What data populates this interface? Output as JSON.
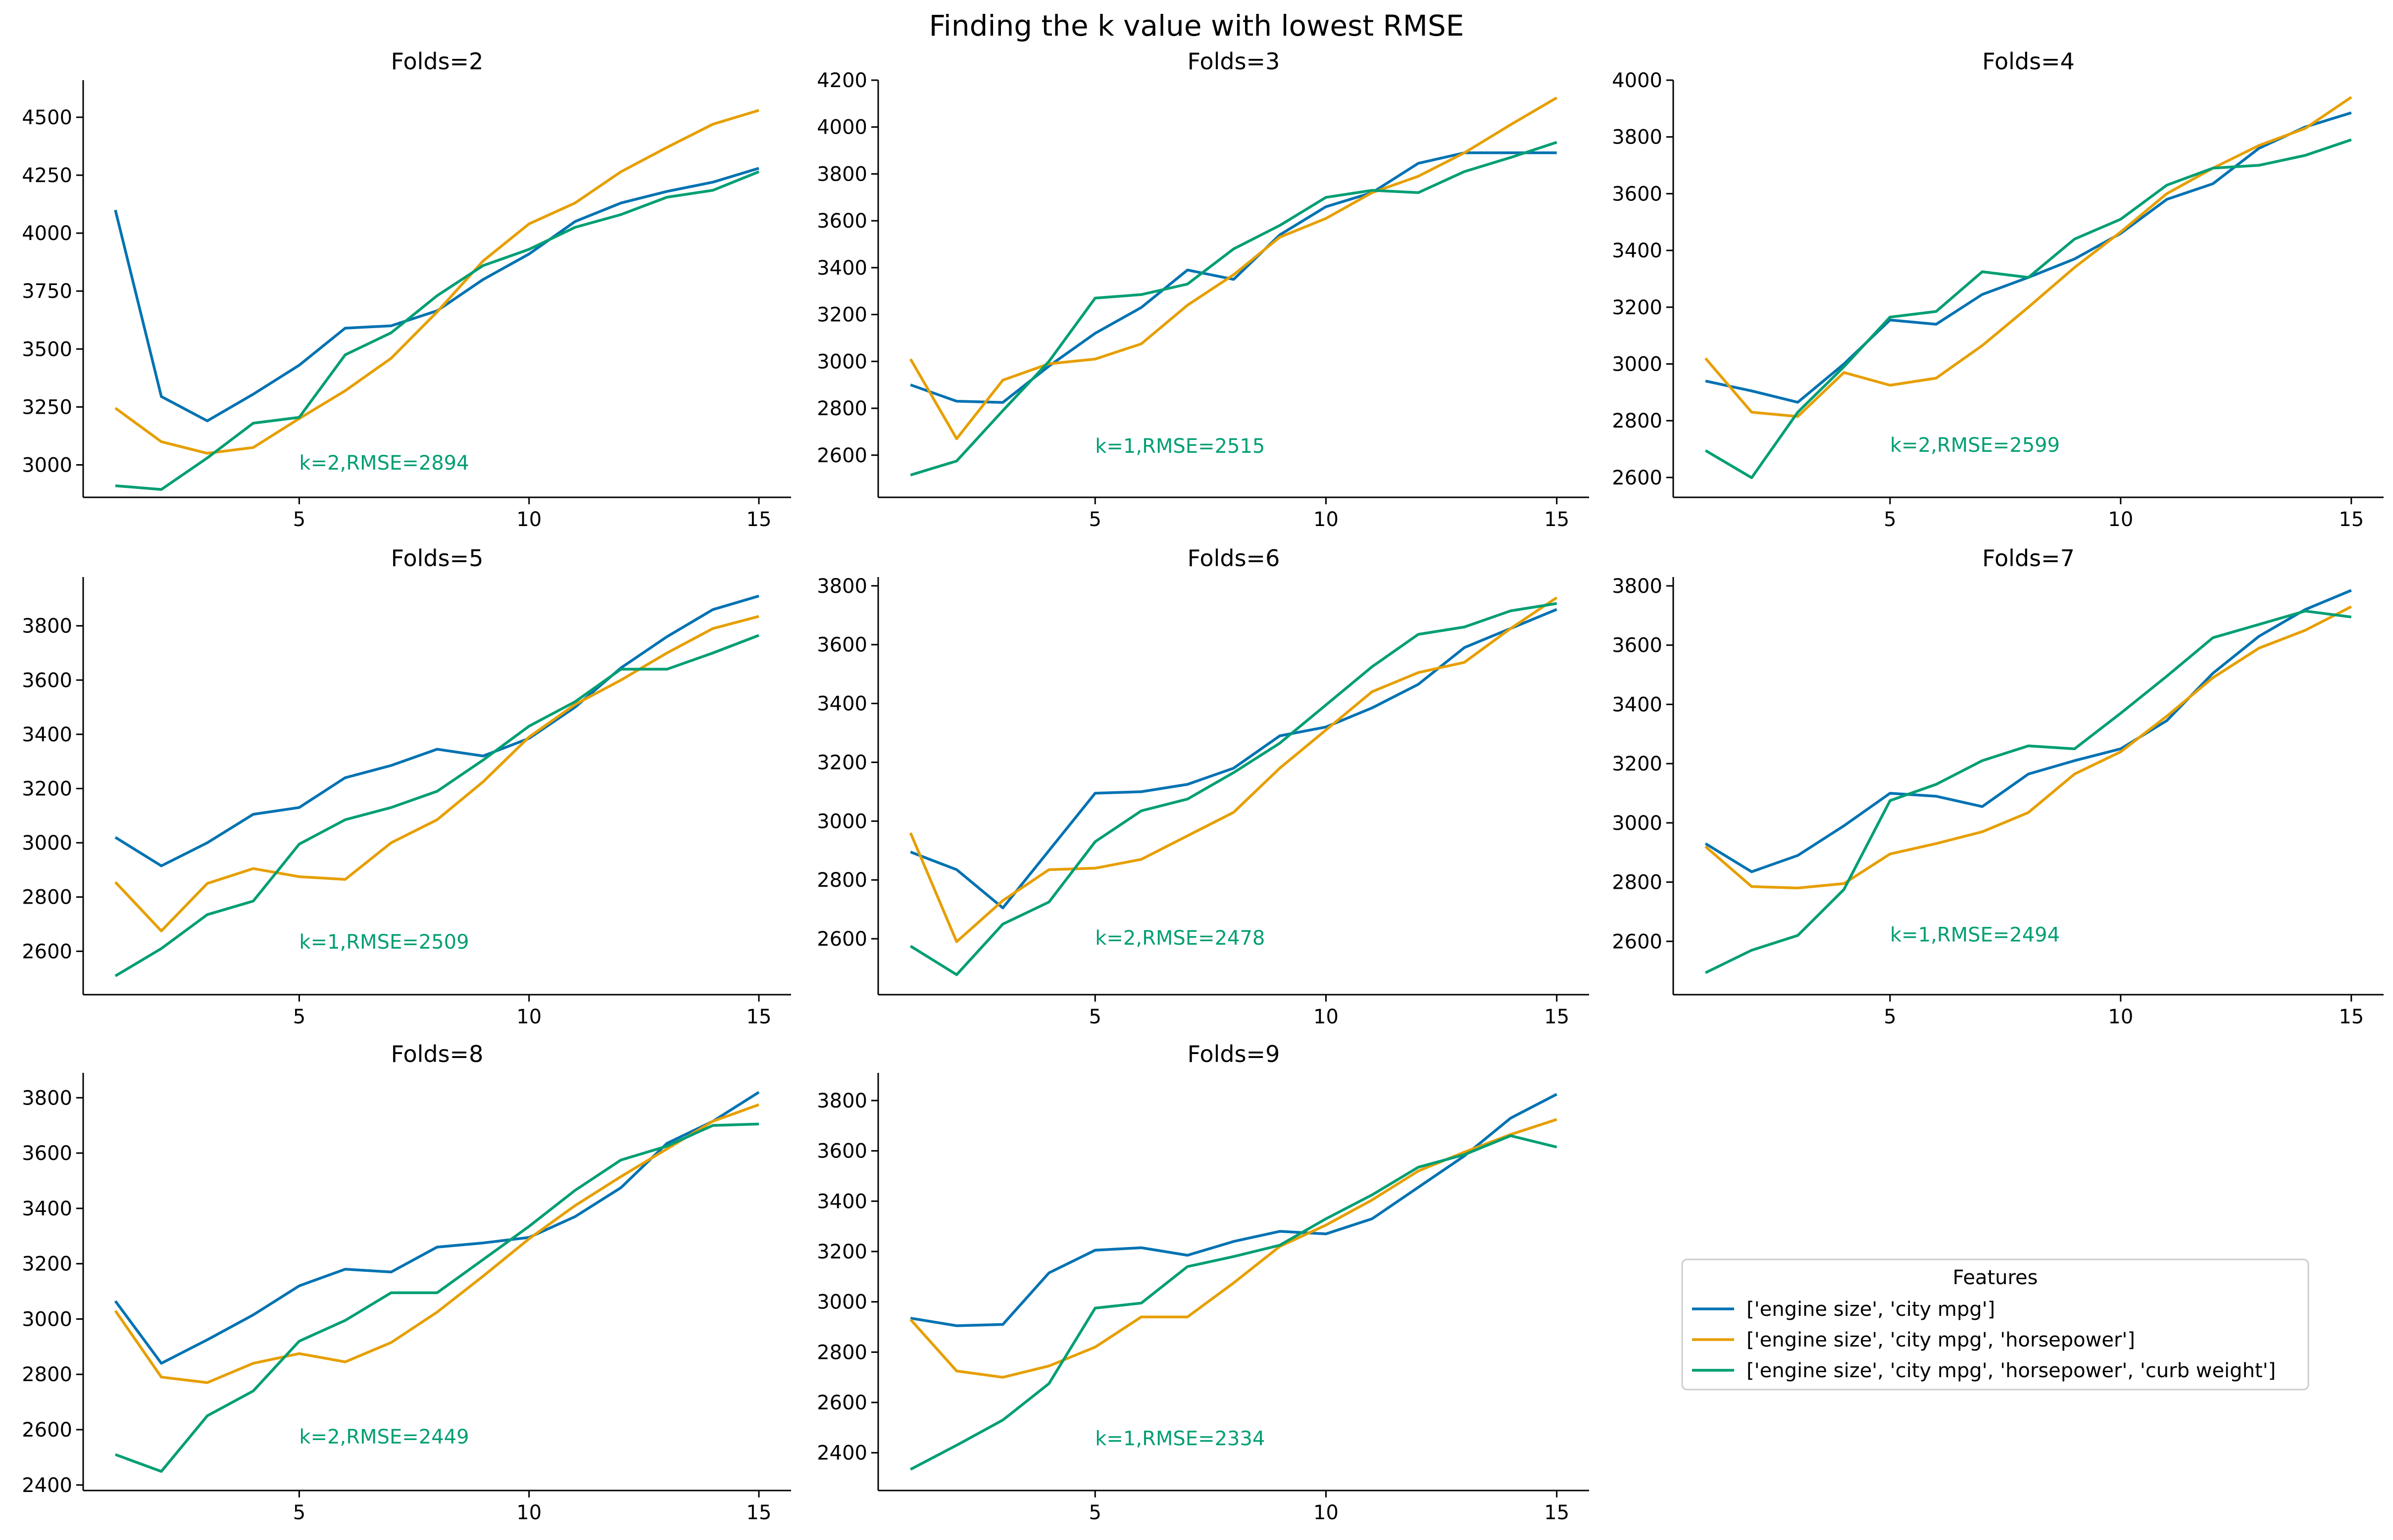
{
  "figure": {
    "title": "Finding the k value with lowest RMSE",
    "colors": {
      "series": [
        "#0072b2",
        "#e69f00",
        "#009e73"
      ],
      "annotation": "#009e73",
      "axis": "#000000"
    }
  },
  "legend": {
    "title": "Features",
    "placement": "lower-right, in empty 9th grid cell"
  },
  "chart_data": [
    {
      "type": "line",
      "title": "Folds=2",
      "x": [
        1,
        2,
        3,
        4,
        5,
        6,
        7,
        8,
        9,
        10,
        11,
        12,
        13,
        14,
        15
      ],
      "xticks": [
        5,
        10,
        15
      ],
      "xlim": [
        0.3,
        15.7
      ],
      "ylim": [
        2860,
        4660
      ],
      "yticks": [
        3000,
        3250,
        3500,
        3750,
        4000,
        4250,
        4500
      ],
      "grid": false,
      "annotation": {
        "text": "k=2,RMSE=2894",
        "x": 5,
        "y": 2980
      },
      "series": [
        {
          "name": "['engine size', 'city mpg']",
          "values": [
            4100,
            3295,
            3190,
            3305,
            3430,
            3590,
            3600,
            3665,
            3800,
            3910,
            4050,
            4130,
            4180,
            4220,
            4280
          ]
        },
        {
          "name": "['engine size', 'city mpg', 'horsepower']",
          "values": [
            3245,
            3100,
            3050,
            3075,
            3200,
            3320,
            3460,
            3660,
            3880,
            4040,
            4130,
            4265,
            4370,
            4470,
            4530
          ]
        },
        {
          "name": "['engine size', 'city mpg', 'horsepower', 'curb weight']",
          "values": [
            2910,
            2894,
            3030,
            3180,
            3205,
            3475,
            3570,
            3730,
            3860,
            3930,
            4025,
            4080,
            4155,
            4185,
            4265
          ]
        }
      ]
    },
    {
      "type": "line",
      "title": "Folds=3",
      "x": [
        1,
        2,
        3,
        4,
        5,
        6,
        7,
        8,
        9,
        10,
        11,
        12,
        13,
        14,
        15
      ],
      "xticks": [
        5,
        10,
        15
      ],
      "xlim": [
        0.3,
        15.7
      ],
      "ylim": [
        2420,
        4200
      ],
      "yticks": [
        2600,
        2800,
        3000,
        3200,
        3400,
        3600,
        3800,
        4000,
        4200
      ],
      "grid": false,
      "annotation": {
        "text": "k=1,RMSE=2515",
        "x": 5,
        "y": 2610
      },
      "series": [
        {
          "name": "['engine size', 'city mpg']",
          "values": [
            2900,
            2830,
            2825,
            2980,
            3120,
            3230,
            3390,
            3350,
            3540,
            3660,
            3720,
            3845,
            3890,
            3890,
            3890
          ]
        },
        {
          "name": "['engine size', 'city mpg', 'horsepower']",
          "values": [
            3010,
            2670,
            2920,
            2990,
            3010,
            3075,
            3240,
            3370,
            3530,
            3610,
            3720,
            3790,
            3890,
            4010,
            4125
          ]
        },
        {
          "name": "['engine size', 'city mpg', 'horsepower', 'curb weight']",
          "values": [
            2515,
            2575,
            2790,
            3000,
            3270,
            3285,
            3330,
            3480,
            3580,
            3700,
            3730,
            3720,
            3810,
            3870,
            3935
          ]
        }
      ]
    },
    {
      "type": "line",
      "title": "Folds=4",
      "x": [
        1,
        2,
        3,
        4,
        5,
        6,
        7,
        8,
        9,
        10,
        11,
        12,
        13,
        14,
        15
      ],
      "xticks": [
        5,
        10,
        15
      ],
      "xlim": [
        0.3,
        15.7
      ],
      "ylim": [
        2530,
        4000
      ],
      "yticks": [
        2600,
        2800,
        3000,
        3200,
        3400,
        3600,
        3800,
        4000
      ],
      "grid": false,
      "annotation": {
        "text": "k=2,RMSE=2599",
        "x": 5,
        "y": 2690
      },
      "series": [
        {
          "name": "['engine size', 'city mpg']",
          "values": [
            2940,
            2905,
            2865,
            3000,
            3155,
            3140,
            3245,
            3305,
            3370,
            3460,
            3580,
            3635,
            3760,
            3835,
            3885
          ]
        },
        {
          "name": "['engine size', 'city mpg', 'horsepower']",
          "values": [
            3020,
            2830,
            2815,
            2970,
            2925,
            2950,
            3065,
            3200,
            3340,
            3465,
            3600,
            3690,
            3770,
            3830,
            3940
          ]
        },
        {
          "name": "['engine size', 'city mpg', 'horsepower', 'curb weight']",
          "values": [
            2695,
            2599,
            2830,
            2990,
            3165,
            3185,
            3325,
            3305,
            3440,
            3510,
            3630,
            3690,
            3700,
            3735,
            3790
          ]
        }
      ]
    },
    {
      "type": "line",
      "title": "Folds=5",
      "x": [
        1,
        2,
        3,
        4,
        5,
        6,
        7,
        8,
        9,
        10,
        11,
        12,
        13,
        14,
        15
      ],
      "xticks": [
        5,
        10,
        15
      ],
      "xlim": [
        0.3,
        15.7
      ],
      "ylim": [
        2440,
        3980
      ],
      "yticks": [
        2600,
        2800,
        3000,
        3200,
        3400,
        3600,
        3800
      ],
      "grid": false,
      "annotation": {
        "text": "k=1,RMSE=2509",
        "x": 5,
        "y": 2610
      },
      "series": [
        {
          "name": "['engine size', 'city mpg']",
          "values": [
            3020,
            2915,
            3000,
            3105,
            3130,
            3240,
            3285,
            3345,
            3320,
            3385,
            3500,
            3645,
            3760,
            3860,
            3910
          ]
        },
        {
          "name": "['engine size', 'city mpg', 'horsepower']",
          "values": [
            2855,
            2675,
            2850,
            2905,
            2875,
            2865,
            3000,
            3085,
            3225,
            3390,
            3510,
            3600,
            3700,
            3790,
            3835
          ]
        },
        {
          "name": "['engine size', 'city mpg', 'horsepower', 'curb weight']",
          "values": [
            2509,
            2610,
            2735,
            2785,
            2995,
            3085,
            3130,
            3190,
            3305,
            3430,
            3520,
            3640,
            3640,
            3700,
            3765
          ]
        }
      ]
    },
    {
      "type": "line",
      "title": "Folds=6",
      "x": [
        1,
        2,
        3,
        4,
        5,
        6,
        7,
        8,
        9,
        10,
        11,
        12,
        13,
        14,
        15
      ],
      "xticks": [
        5,
        10,
        15
      ],
      "xlim": [
        0.3,
        15.7
      ],
      "ylim": [
        2410,
        3830
      ],
      "yticks": [
        2600,
        2800,
        3000,
        3200,
        3400,
        3600,
        3800
      ],
      "grid": false,
      "annotation": {
        "text": "k=2,RMSE=2478",
        "x": 5,
        "y": 2580
      },
      "series": [
        {
          "name": "['engine size', 'city mpg']",
          "values": [
            2895,
            2835,
            2705,
            2900,
            3095,
            3100,
            3125,
            3180,
            3290,
            3320,
            3385,
            3465,
            3590,
            3655,
            3720
          ]
        },
        {
          "name": "['engine size', 'city mpg', 'horsepower']",
          "values": [
            2960,
            2590,
            2730,
            2835,
            2840,
            2870,
            2950,
            3030,
            3180,
            3310,
            3440,
            3505,
            3540,
            3655,
            3760
          ]
        },
        {
          "name": "['engine size', 'city mpg', 'horsepower', 'curb weight']",
          "values": [
            2575,
            2478,
            2650,
            2725,
            2930,
            3035,
            3075,
            3165,
            3265,
            3395,
            3525,
            3635,
            3660,
            3715,
            3740
          ]
        }
      ]
    },
    {
      "type": "line",
      "title": "Folds=7",
      "x": [
        1,
        2,
        3,
        4,
        5,
        6,
        7,
        8,
        9,
        10,
        11,
        12,
        13,
        14,
        15
      ],
      "xticks": [
        5,
        10,
        15
      ],
      "xlim": [
        0.3,
        15.7
      ],
      "ylim": [
        2420,
        3830
      ],
      "yticks": [
        2600,
        2800,
        3000,
        3200,
        3400,
        3600,
        3800
      ],
      "grid": false,
      "annotation": {
        "text": "k=1,RMSE=2494",
        "x": 5,
        "y": 2600
      },
      "series": [
        {
          "name": "['engine size', 'city mpg']",
          "values": [
            2930,
            2835,
            2890,
            2990,
            3100,
            3090,
            3055,
            3165,
            3210,
            3250,
            3345,
            3505,
            3630,
            3720,
            3785
          ]
        },
        {
          "name": "['engine size', 'city mpg', 'horsepower']",
          "values": [
            2920,
            2785,
            2780,
            2795,
            2895,
            2930,
            2970,
            3035,
            3165,
            3240,
            3360,
            3490,
            3590,
            3650,
            3730
          ]
        },
        {
          "name": "['engine size', 'city mpg', 'horsepower', 'curb weight']",
          "values": [
            2494,
            2570,
            2620,
            2775,
            3075,
            3130,
            3210,
            3260,
            3250,
            3370,
            3495,
            3625,
            3670,
            3715,
            3695
          ]
        }
      ]
    },
    {
      "type": "line",
      "title": "Folds=8",
      "x": [
        1,
        2,
        3,
        4,
        5,
        6,
        7,
        8,
        9,
        10,
        11,
        12,
        13,
        14,
        15
      ],
      "xticks": [
        5,
        10,
        15
      ],
      "xlim": [
        0.3,
        15.7
      ],
      "ylim": [
        2380,
        3890
      ],
      "yticks": [
        2400,
        2600,
        2800,
        3000,
        3200,
        3400,
        3600,
        3800
      ],
      "grid": false,
      "annotation": {
        "text": "k=2,RMSE=2449",
        "x": 5,
        "y": 2550
      },
      "series": [
        {
          "name": "['engine size', 'city mpg']",
          "values": [
            3065,
            2840,
            2925,
            3015,
            3120,
            3180,
            3170,
            3260,
            3275,
            3295,
            3370,
            3475,
            3635,
            3715,
            3820
          ]
        },
        {
          "name": "['engine size', 'city mpg', 'horsepower']",
          "values": [
            3030,
            2790,
            2770,
            2840,
            2875,
            2845,
            2915,
            3025,
            3155,
            3290,
            3410,
            3515,
            3615,
            3715,
            3775
          ]
        },
        {
          "name": "['engine size', 'city mpg', 'horsepower', 'curb weight']",
          "values": [
            2510,
            2449,
            2650,
            2740,
            2920,
            2995,
            3095,
            3095,
            3215,
            3335,
            3465,
            3575,
            3625,
            3700,
            3705
          ]
        }
      ]
    },
    {
      "type": "line",
      "title": "Folds=9",
      "x": [
        1,
        2,
        3,
        4,
        5,
        6,
        7,
        8,
        9,
        10,
        11,
        12,
        13,
        14,
        15
      ],
      "xticks": [
        5,
        10,
        15
      ],
      "xlim": [
        0.3,
        15.7
      ],
      "ylim": [
        2250,
        3910
      ],
      "yticks": [
        2400,
        2600,
        2800,
        3000,
        3200,
        3400,
        3600,
        3800
      ],
      "grid": false,
      "annotation": {
        "text": "k=1,RMSE=2334",
        "x": 5,
        "y": 2430
      },
      "series": [
        {
          "name": "['engine size', 'city mpg']",
          "values": [
            2935,
            2905,
            2910,
            3115,
            3205,
            3215,
            3185,
            3240,
            3280,
            3270,
            3330,
            3455,
            3580,
            3730,
            3825
          ]
        },
        {
          "name": "['engine size', 'city mpg', 'horsepower']",
          "values": [
            2930,
            2725,
            2700,
            2745,
            2820,
            2940,
            2940,
            3075,
            3220,
            3305,
            3405,
            3520,
            3595,
            3665,
            3725
          ]
        },
        {
          "name": "['engine size', 'city mpg', 'horsepower', 'curb weight']",
          "values": [
            2334,
            2430,
            2530,
            2675,
            2975,
            2995,
            3140,
            3180,
            3225,
            3330,
            3425,
            3535,
            3585,
            3660,
            3615
          ]
        }
      ]
    }
  ]
}
